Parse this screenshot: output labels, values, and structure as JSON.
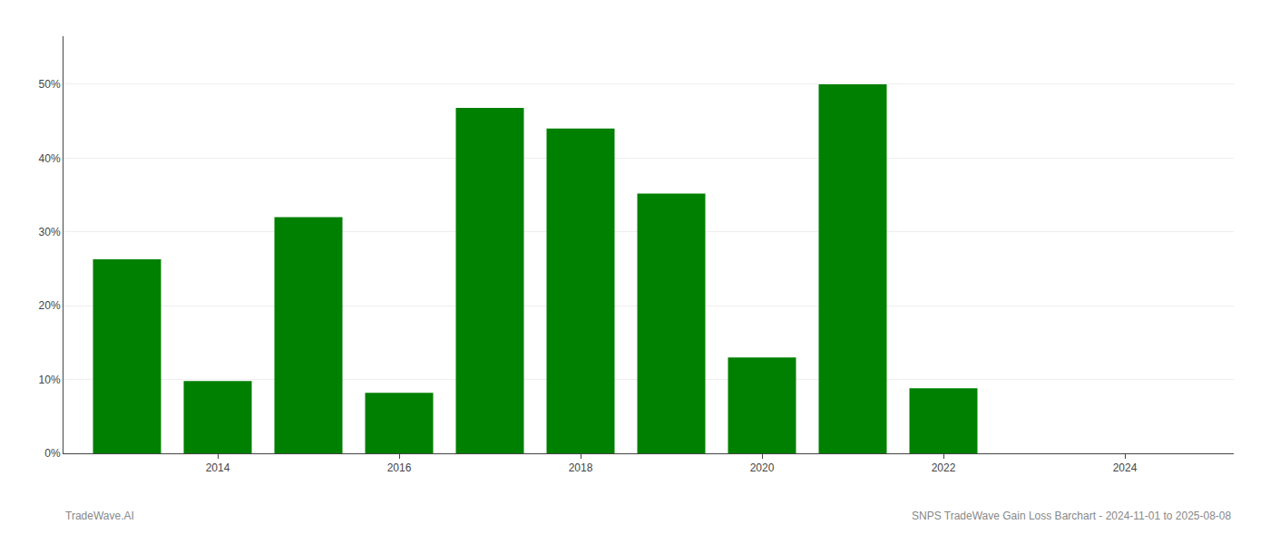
{
  "chart_data": {
    "type": "bar",
    "x": [
      2013,
      2014,
      2015,
      2016,
      2017,
      2018,
      2019,
      2020,
      2021,
      2022,
      2023
    ],
    "values": [
      0.263,
      0.098,
      0.32,
      0.082,
      0.468,
      0.44,
      0.352,
      0.13,
      0.5,
      0.088,
      0.0
    ],
    "color": "#008000",
    "xlim": [
      2012.3,
      2025.2
    ],
    "xticks": [
      2014,
      2016,
      2018,
      2020,
      2022,
      2024
    ],
    "ylim": [
      0,
      0.565
    ],
    "yticks": [
      {
        "value": 0.0,
        "label": "0%"
      },
      {
        "value": 0.1,
        "label": "10%"
      },
      {
        "value": 0.2,
        "label": "20%"
      },
      {
        "value": 0.3,
        "label": "30%"
      },
      {
        "value": 0.4,
        "label": "40%"
      },
      {
        "value": 0.5,
        "label": "50%"
      }
    ],
    "grid": true,
    "annotations": [
      {
        "text": "TradeWave.AI"
      },
      {
        "text": "SNPS TradeWave Gain Loss Barchart - 2024-11-01 to 2025-08-08"
      }
    ]
  }
}
